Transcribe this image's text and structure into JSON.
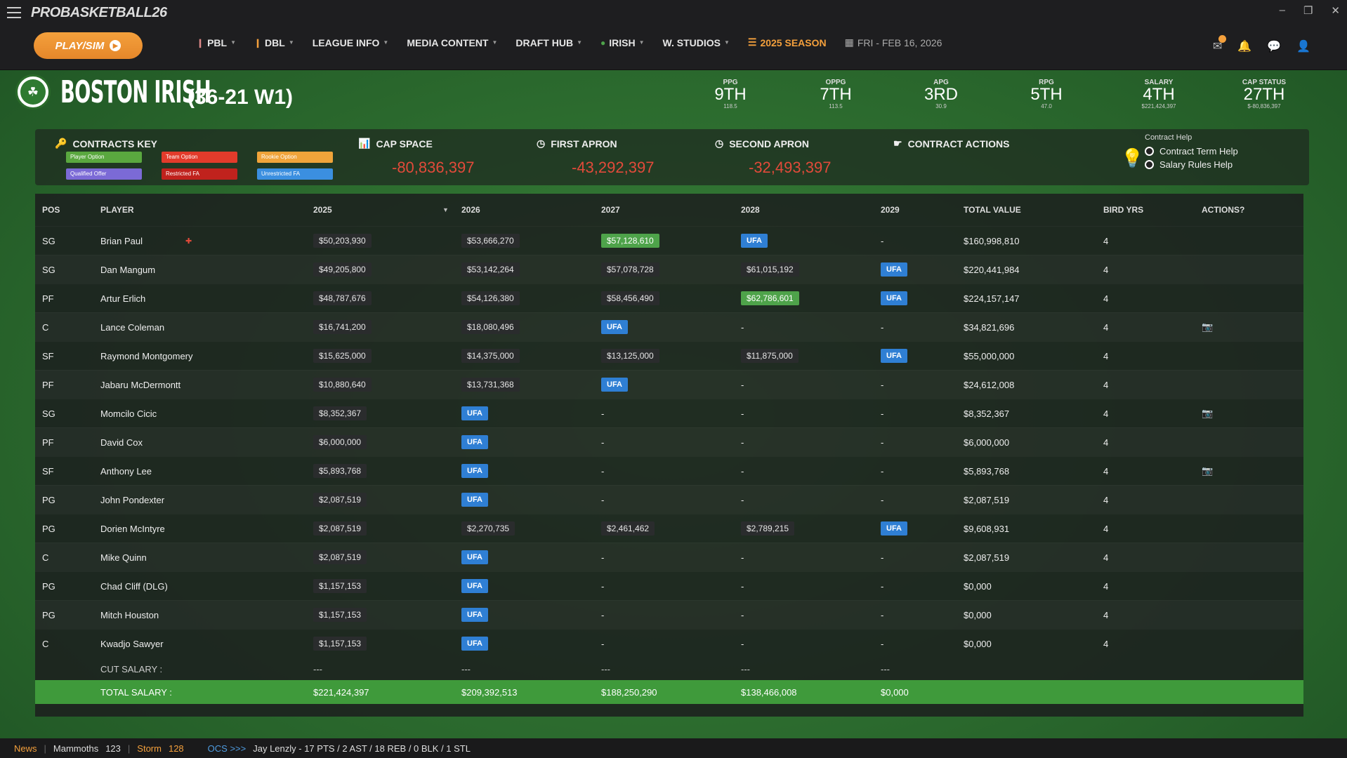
{
  "app": {
    "logo": "PROBASKETBALL26"
  },
  "window": {
    "minimize": "–",
    "restore": "❐",
    "close": "✕"
  },
  "play_label": "PLAY/SIM",
  "nav": {
    "items": [
      {
        "label": "PBL"
      },
      {
        "label": "DBL"
      },
      {
        "label": "LEAGUE INFO"
      },
      {
        "label": "MEDIA CONTENT"
      },
      {
        "label": "DRAFT HUB"
      },
      {
        "label": "IRISH"
      },
      {
        "label": "W. STUDIOS"
      }
    ],
    "season": "2025 SEASON",
    "date": "FRI - FEB 16, 2026"
  },
  "team": {
    "name": "BOSTON IRISH",
    "record": "(36-21  W1)",
    "stats": [
      {
        "label": "PPG",
        "value": "9TH",
        "sub": "118.5"
      },
      {
        "label": "OPPG",
        "value": "7TH",
        "sub": "113.5"
      },
      {
        "label": "APG",
        "value": "3RD",
        "sub": "30.9"
      },
      {
        "label": "RPG",
        "value": "5TH",
        "sub": "47.0"
      },
      {
        "label": "SALARY",
        "value": "4TH",
        "sub": "$221,424,397"
      },
      {
        "label": "CAP STATUS",
        "value": "27TH",
        "sub": "$-80,836,397"
      }
    ]
  },
  "info": {
    "contracts_key": "CONTRACTS KEY",
    "key_items": [
      {
        "label": "Player Option",
        "color": "#5aa83f"
      },
      {
        "label": "Team Option",
        "color": "#e23b2b"
      },
      {
        "label": "Rookie Option",
        "color": "#f0a43a"
      },
      {
        "label": "Qualified Offer",
        "color": "#7b6ad6"
      },
      {
        "label": "Restricted FA",
        "color": "#c0221d"
      },
      {
        "label": "Unrestricted FA",
        "color": "#3b8fe0"
      }
    ],
    "cap_space": {
      "label": "CAP SPACE",
      "value": "-80,836,397"
    },
    "first_apron": {
      "label": "FIRST APRON",
      "value": "-43,292,397"
    },
    "second_apron": {
      "label": "SECOND APRON",
      "value": "-32,493,397"
    },
    "contract_actions": "CONTRACT ACTIONS",
    "help": {
      "title": "Contract Help",
      "term": "Contract Term Help",
      "rules": "Salary Rules Help"
    }
  },
  "table": {
    "headers": [
      "POS",
      "PLAYER",
      "2025",
      "2026",
      "2027",
      "2028",
      "2029",
      "TOTAL VALUE",
      "BIRD YRS",
      "ACTIONS?"
    ],
    "rows": [
      {
        "pos": "SG",
        "player": "Brian Paul",
        "y2025": "$50,203,930",
        "y2026": "$53,666,270",
        "y2027": "$57,128,610",
        "y2028": "UFA",
        "y2029": "-",
        "total": "$160,998,810",
        "bird": "4",
        "action": ""
      },
      {
        "pos": "SG",
        "player": "Dan Mangum",
        "y2025": "$49,205,800",
        "y2026": "$53,142,264",
        "y2027": "$57,078,728",
        "y2028": "$61,015,192",
        "y2029": "UFA",
        "total": "$220,441,984",
        "bird": "4",
        "action": ""
      },
      {
        "pos": "PF",
        "player": "Artur Erlich",
        "y2025": "$48,787,676",
        "y2026": "$54,126,380",
        "y2027": "$58,456,490",
        "y2028": "$62,786,601",
        "y2029": "UFA",
        "total": "$224,157,147",
        "bird": "4",
        "action": ""
      },
      {
        "pos": "C",
        "player": "Lance Coleman",
        "y2025": "$16,741,200",
        "y2026": "$18,080,496",
        "y2027": "UFA",
        "y2028": "-",
        "y2029": "-",
        "total": "$34,821,696",
        "bird": "4",
        "action": "📷"
      },
      {
        "pos": "SF",
        "player": "Raymond Montgomery",
        "y2025": "$15,625,000",
        "y2026": "$14,375,000",
        "y2027": "$13,125,000",
        "y2028": "$11,875,000",
        "y2029": "UFA",
        "total": "$55,000,000",
        "bird": "4",
        "action": ""
      },
      {
        "pos": "PF",
        "player": "Jabaru McDermontt",
        "y2025": "$10,880,640",
        "y2026": "$13,731,368",
        "y2027": "UFA",
        "y2028": "-",
        "y2029": "-",
        "total": "$24,612,008",
        "bird": "4",
        "action": ""
      },
      {
        "pos": "SG",
        "player": "Momcilo Cicic",
        "y2025": "$8,352,367",
        "y2026": "UFA",
        "y2027": "-",
        "y2028": "-",
        "y2029": "-",
        "total": "$8,352,367",
        "bird": "4",
        "action": "📷"
      },
      {
        "pos": "PF",
        "player": "David Cox",
        "y2025": "$6,000,000",
        "y2026": "UFA",
        "y2027": "-",
        "y2028": "-",
        "y2029": "-",
        "total": "$6,000,000",
        "bird": "4",
        "action": ""
      },
      {
        "pos": "SF",
        "player": "Anthony Lee",
        "y2025": "$5,893,768",
        "y2026": "UFA",
        "y2027": "-",
        "y2028": "-",
        "y2029": "-",
        "total": "$5,893,768",
        "bird": "4",
        "action": "📷"
      },
      {
        "pos": "PG",
        "player": "John Pondexter",
        "y2025": "$2,087,519",
        "y2026": "UFA",
        "y2027": "-",
        "y2028": "-",
        "y2029": "-",
        "total": "$2,087,519",
        "bird": "4",
        "action": ""
      },
      {
        "pos": "PG",
        "player": "Dorien McIntyre",
        "y2025": "$2,087,519",
        "y2026": "$2,270,735",
        "y2027": "$2,461,462",
        "y2028": "$2,789,215",
        "y2029": "UFA",
        "total": "$9,608,931",
        "bird": "4",
        "action": ""
      },
      {
        "pos": "C",
        "player": "Mike Quinn",
        "y2025": "$2,087,519",
        "y2026": "UFA",
        "y2027": "-",
        "y2028": "-",
        "y2029": "-",
        "total": "$2,087,519",
        "bird": "4",
        "action": ""
      },
      {
        "pos": "PG",
        "player": "Chad Cliff (DLG)",
        "y2025": "$1,157,153",
        "y2026": "UFA",
        "y2027": "-",
        "y2028": "-",
        "y2029": "-",
        "total": "$0,000",
        "bird": "4",
        "action": ""
      },
      {
        "pos": "PG",
        "player": "Mitch Houston",
        "y2025": "$1,157,153",
        "y2026": "UFA",
        "y2027": "-",
        "y2028": "-",
        "y2029": "-",
        "total": "$0,000",
        "bird": "4",
        "action": ""
      },
      {
        "pos": "C",
        "player": "Kwadjo Sawyer",
        "y2025": "$1,157,153",
        "y2026": "UFA",
        "y2027": "-",
        "y2028": "-",
        "y2029": "-",
        "total": "$0,000",
        "bird": "4",
        "action": ""
      }
    ],
    "green_cells": [
      "0-y2027",
      "2-y2028"
    ],
    "cut": {
      "label": "CUT SALARY :",
      "values": [
        "---",
        "---",
        "---",
        "---",
        "---"
      ]
    },
    "total": {
      "label": "TOTAL SALARY :",
      "values": [
        "$221,424,397",
        "$209,392,513",
        "$188,250,290",
        "$138,466,008",
        "$0,000"
      ]
    }
  },
  "ticker": {
    "news": "News",
    "team1": "Mammoths",
    "score1": "123",
    "team2": "Storm",
    "score2": "128",
    "ocs": "OCS >>>",
    "text": "Jay Lenzly - 17 PTS / 2 AST / 18 REB / 0 BLK / 1 STL"
  }
}
